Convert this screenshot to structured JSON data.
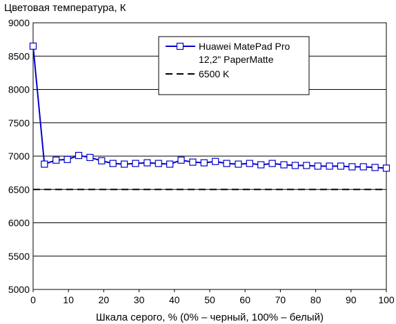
{
  "chart_data": {
    "type": "line",
    "title": "",
    "ylabel": "Цветовая температура, К",
    "xlabel": "Шкала серого, % (0% – черный, 100% – белый)",
    "xlim": [
      0,
      100
    ],
    "ylim": [
      5000,
      9000
    ],
    "xticks": [
      "0",
      "10",
      "20",
      "30",
      "40",
      "50",
      "60",
      "70",
      "80",
      "90",
      "100"
    ],
    "yticks": [
      "5000",
      "5500",
      "6000",
      "6500",
      "7000",
      "7500",
      "8000",
      "8500",
      "9000"
    ],
    "grid": "horizontal",
    "legend_position": "top-right",
    "series": [
      {
        "name": "Huawei MatePad Pro",
        "name_line2": "12,2\" PaperMatte",
        "color": "#0000cc",
        "marker": "square",
        "x": [
          0,
          3.2,
          6.5,
          9.7,
          12.9,
          16.1,
          19.4,
          22.6,
          25.8,
          29.0,
          32.3,
          35.5,
          38.7,
          41.9,
          45.2,
          48.4,
          51.6,
          54.8,
          58.1,
          61.3,
          64.5,
          67.7,
          71.0,
          74.2,
          77.4,
          80.6,
          83.9,
          87.1,
          90.3,
          93.5,
          96.8,
          100
        ],
        "y": [
          8650,
          6880,
          6940,
          6950,
          7010,
          6980,
          6930,
          6890,
          6880,
          6890,
          6900,
          6890,
          6880,
          6940,
          6910,
          6900,
          6920,
          6890,
          6880,
          6890,
          6870,
          6890,
          6870,
          6860,
          6860,
          6850,
          6850,
          6850,
          6840,
          6840,
          6830,
          6820
        ]
      },
      {
        "name": "6500 K",
        "color": "#000000",
        "style": "dashed",
        "x": [
          0,
          100
        ],
        "y": [
          6500,
          6500
        ]
      }
    ]
  }
}
